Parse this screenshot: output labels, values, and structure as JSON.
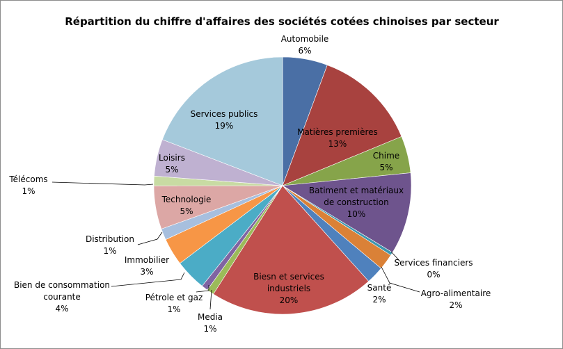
{
  "chart_data": {
    "type": "pie",
    "title": "Répartition du chiffre d'affaires des sociétés cotées chinoises par secteur",
    "slices": [
      {
        "name": "Automobile",
        "percent_label": "6%",
        "value": 5.6,
        "color": "#4a6fa5"
      },
      {
        "name": "Matières premières",
        "percent_label": "13%",
        "value": 13.0,
        "color": "#a8423f"
      },
      {
        "name": "Chime",
        "percent_label": "5%",
        "value": 4.6,
        "color": "#86a44a"
      },
      {
        "name": "Batiment et matériaux de construction",
        "percent_label": "10%",
        "value": 10.2,
        "color": "#6e548d"
      },
      {
        "name": "Services financiers",
        "percent_label": "0%",
        "value": 0.4,
        "color": "#3d96ae"
      },
      {
        "name": "Agro-alimentaire",
        "percent_label": "2%",
        "value": 2.0,
        "color": "#da8137"
      },
      {
        "name": "Santé",
        "percent_label": "2%",
        "value": 2.2,
        "color": "#4f81bd"
      },
      {
        "name": "Biesn et services industriels",
        "percent_label": "20%",
        "value": 20.5,
        "color": "#c0504d"
      },
      {
        "name": "Media",
        "percent_label": "1%",
        "value": 0.9,
        "color": "#9bbb59"
      },
      {
        "name": "Pétrole et gaz",
        "percent_label": "1%",
        "value": 0.8,
        "color": "#8064a2"
      },
      {
        "name": "Bien de consommation courante",
        "percent_label": "4%",
        "value": 3.9,
        "color": "#4bacc6"
      },
      {
        "name": "Immobilier",
        "percent_label": "3%",
        "value": 3.4,
        "color": "#f79646"
      },
      {
        "name": "Distribution",
        "percent_label": "1%",
        "value": 1.4,
        "color": "#a7bfde"
      },
      {
        "name": "Technologie",
        "percent_label": "5%",
        "value": 5.4,
        "color": "#dca7a5"
      },
      {
        "name": "Télécoms",
        "percent_label": "1%",
        "value": 1.2,
        "color": "#c8dba3"
      },
      {
        "name": "Loisirs",
        "percent_label": "5%",
        "value": 4.6,
        "color": "#bfb1d1"
      },
      {
        "name": "Services publics",
        "percent_label": "19%",
        "value": 19.0,
        "color": "#a5c9db"
      }
    ]
  }
}
